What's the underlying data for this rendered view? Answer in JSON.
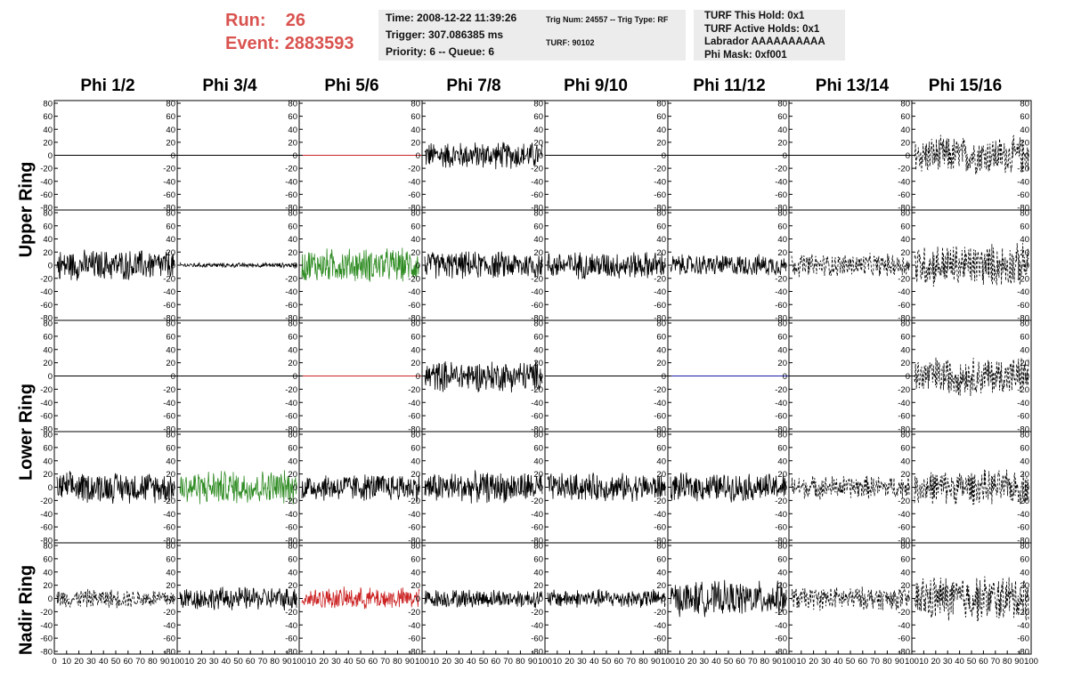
{
  "header": {
    "run_label": "Run:",
    "run_value": "26",
    "event_label": "Event:",
    "event_value": "2883593",
    "time": "Time: 2008-12-22 11:39:26",
    "trigger": "Trigger: 307.086385 ms",
    "priority": "Priority: 6 -- Queue: 6",
    "trig_num": "Trig Num: 24557 -- Trig Type: RF",
    "turf": "TURF: 90102",
    "turf_this_hold": "TURF This Hold: 0x1",
    "turf_active_holds": "TURF Active Holds: 0x1",
    "labrador": "Labrador AAAAAAAAAA",
    "phi_mask": "Phi Mask: 0xf001"
  },
  "columns": [
    "Phi 1/2",
    "Phi 3/4",
    "Phi 5/6",
    "Phi 7/8",
    "Phi 9/10",
    "Phi 11/12",
    "Phi 13/14",
    "Phi 15/16"
  ],
  "rings": [
    "Upper Ring",
    "Lower Ring",
    "Nadir Ring"
  ],
  "colors": {
    "run_text": "#d9534f",
    "info_bg": "#ececec",
    "green": "#2e8b22",
    "red": "#cc2222",
    "blue": "#1a1aaa",
    "black": "#000000"
  },
  "axis": {
    "yticks": [
      "80",
      "60",
      "40",
      "20",
      "0",
      "-20",
      "-40",
      "-60",
      "-80"
    ],
    "xticks": [
      "0",
      "10",
      "20",
      "30",
      "40",
      "50",
      "60",
      "70",
      "80",
      "90",
      "100"
    ]
  },
  "panels": [
    {
      "row": 0,
      "col": 0,
      "amp": 0,
      "style": "solid",
      "color": "black"
    },
    {
      "row": 0,
      "col": 1,
      "amp": 0,
      "style": "solid",
      "color": "black"
    },
    {
      "row": 0,
      "col": 2,
      "amp": 0,
      "style": "solid",
      "color": "red"
    },
    {
      "row": 0,
      "col": 3,
      "amp": 18,
      "style": "solid",
      "color": "black"
    },
    {
      "row": 0,
      "col": 4,
      "amp": 0,
      "style": "solid",
      "color": "black"
    },
    {
      "row": 0,
      "col": 5,
      "amp": 0,
      "style": "solid",
      "color": "black"
    },
    {
      "row": 0,
      "col": 6,
      "amp": 0,
      "style": "solid",
      "color": "black"
    },
    {
      "row": 0,
      "col": 7,
      "amp": 25,
      "style": "dashed",
      "color": "black"
    },
    {
      "row": 1,
      "col": 0,
      "amp": 20,
      "style": "solid",
      "color": "black"
    },
    {
      "row": 1,
      "col": 1,
      "amp": 3,
      "style": "solid",
      "color": "black"
    },
    {
      "row": 1,
      "col": 2,
      "amp": 22,
      "style": "solid",
      "color": "green"
    },
    {
      "row": 1,
      "col": 3,
      "amp": 18,
      "style": "solid",
      "color": "black"
    },
    {
      "row": 1,
      "col": 4,
      "amp": 18,
      "style": "solid",
      "color": "black"
    },
    {
      "row": 1,
      "col": 5,
      "amp": 14,
      "style": "solid",
      "color": "black"
    },
    {
      "row": 1,
      "col": 6,
      "amp": 15,
      "style": "dashed",
      "color": "black"
    },
    {
      "row": 1,
      "col": 7,
      "amp": 28,
      "style": "dashed",
      "color": "black"
    },
    {
      "row": 2,
      "col": 0,
      "amp": 0,
      "style": "solid",
      "color": "black"
    },
    {
      "row": 2,
      "col": 1,
      "amp": 0,
      "style": "solid",
      "color": "black"
    },
    {
      "row": 2,
      "col": 2,
      "amp": 0,
      "style": "solid",
      "color": "red"
    },
    {
      "row": 2,
      "col": 3,
      "amp": 20,
      "style": "solid",
      "color": "black"
    },
    {
      "row": 2,
      "col": 4,
      "amp": 0,
      "style": "solid",
      "color": "black"
    },
    {
      "row": 2,
      "col": 5,
      "amp": 0,
      "style": "solid",
      "color": "blue"
    },
    {
      "row": 2,
      "col": 6,
      "amp": 0,
      "style": "solid",
      "color": "black"
    },
    {
      "row": 2,
      "col": 7,
      "amp": 25,
      "style": "dashed",
      "color": "black"
    },
    {
      "row": 3,
      "col": 0,
      "amp": 20,
      "style": "solid",
      "color": "black"
    },
    {
      "row": 3,
      "col": 1,
      "amp": 22,
      "style": "solid",
      "color": "green"
    },
    {
      "row": 3,
      "col": 2,
      "amp": 18,
      "style": "solid",
      "color": "black"
    },
    {
      "row": 3,
      "col": 3,
      "amp": 20,
      "style": "solid",
      "color": "black"
    },
    {
      "row": 3,
      "col": 4,
      "amp": 18,
      "style": "solid",
      "color": "black"
    },
    {
      "row": 3,
      "col": 5,
      "amp": 18,
      "style": "solid",
      "color": "black"
    },
    {
      "row": 3,
      "col": 6,
      "amp": 15,
      "style": "dashed",
      "color": "black"
    },
    {
      "row": 3,
      "col": 7,
      "amp": 22,
      "style": "dashed",
      "color": "black"
    },
    {
      "row": 4,
      "col": 0,
      "amp": 12,
      "style": "dashed",
      "color": "black"
    },
    {
      "row": 4,
      "col": 1,
      "amp": 15,
      "style": "solid",
      "color": "black"
    },
    {
      "row": 4,
      "col": 2,
      "amp": 14,
      "style": "solid",
      "color": "red"
    },
    {
      "row": 4,
      "col": 3,
      "amp": 12,
      "style": "solid",
      "color": "black"
    },
    {
      "row": 4,
      "col": 4,
      "amp": 12,
      "style": "solid",
      "color": "black"
    },
    {
      "row": 4,
      "col": 5,
      "amp": 22,
      "style": "solid",
      "color": "black"
    },
    {
      "row": 4,
      "col": 6,
      "amp": 15,
      "style": "dashed",
      "color": "black"
    },
    {
      "row": 4,
      "col": 7,
      "amp": 30,
      "style": "dashed",
      "color": "black"
    }
  ]
}
